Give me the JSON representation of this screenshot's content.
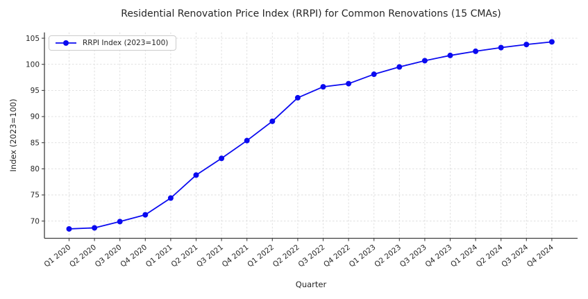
{
  "chart_data": {
    "type": "line",
    "title": "Residential Renovation Price Index (RRPI) for Common Renovations (15 CMAs)",
    "xlabel": "Quarter",
    "ylabel": "Index (2023=100)",
    "grid": true,
    "legend_position": "upper-left",
    "categories": [
      "Q1 2020",
      "Q2 2020",
      "Q3 2020",
      "Q4 2020",
      "Q1 2021",
      "Q2 2021",
      "Q3 2021",
      "Q4 2021",
      "Q1 2022",
      "Q2 2022",
      "Q3 2022",
      "Q4 2022",
      "Q1 2023",
      "Q2 2023",
      "Q3 2023",
      "Q4 2023",
      "Q1 2024",
      "Q2 2024",
      "Q3 2024",
      "Q4 2024"
    ],
    "series": [
      {
        "name": "RRPI Index (2023=100)",
        "color": "#0a0af0",
        "marker": "circle",
        "values": [
          68.5,
          68.7,
          69.9,
          71.2,
          74.4,
          78.8,
          82.0,
          85.4,
          89.1,
          93.6,
          95.7,
          96.3,
          98.1,
          99.5,
          100.7,
          101.7,
          102.5,
          103.2,
          103.8,
          104.3
        ]
      }
    ],
    "yticks": [
      70,
      75,
      80,
      85,
      90,
      95,
      100,
      105
    ],
    "ylim": [
      66.7,
      106.1
    ],
    "colors": {
      "grid": "#dcdcdc",
      "spine": "#3f3f3f",
      "tick_text": "#262626",
      "legend_border": "#cccccc",
      "background": "#ffffff"
    }
  }
}
